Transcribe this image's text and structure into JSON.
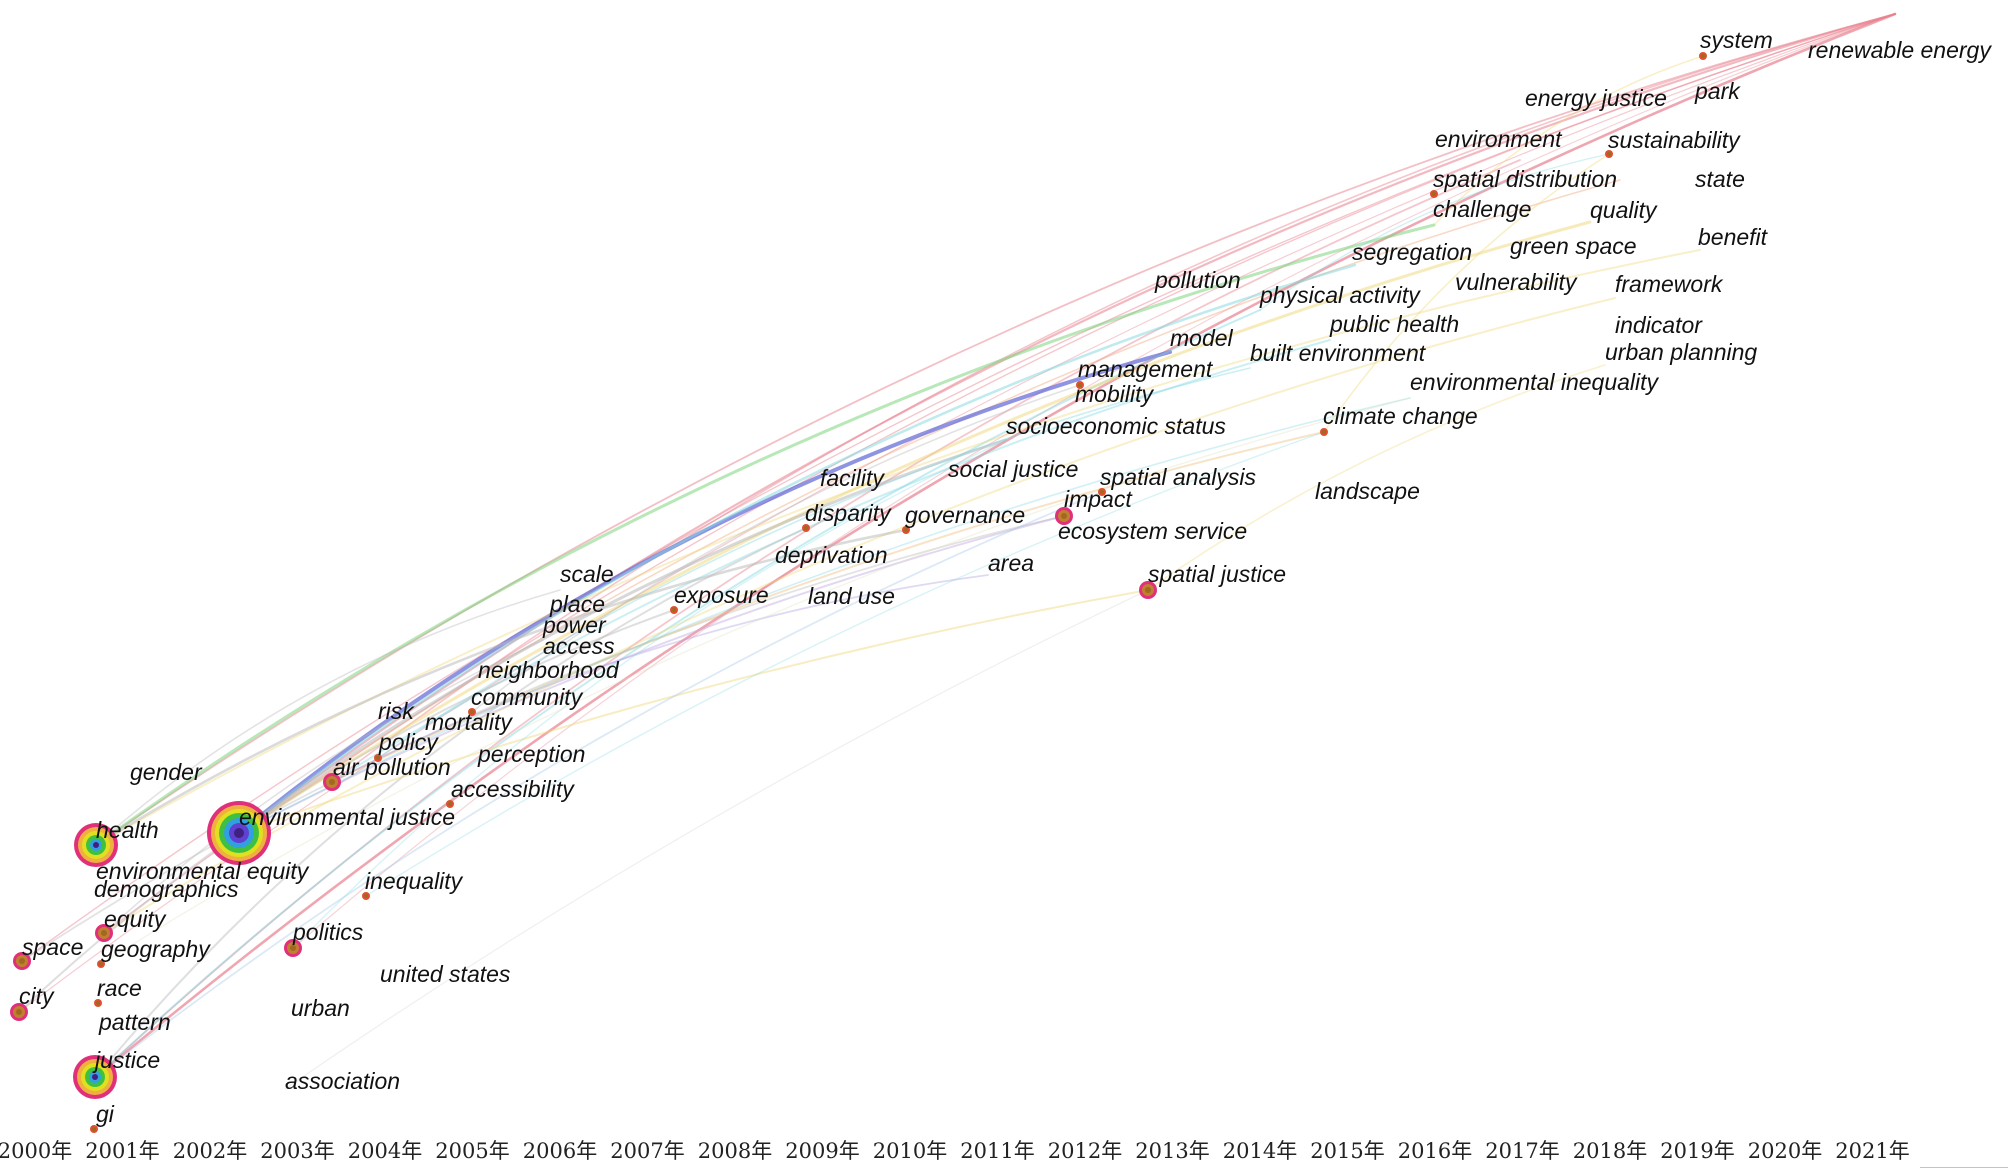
{
  "timeline": {
    "years": [
      "2000年",
      "2001年",
      "2002年",
      "2003年",
      "2004年",
      "2005年",
      "2006年",
      "2007年",
      "2008年",
      "2009年",
      "2010年",
      "2011年",
      "2012年",
      "2013年",
      "2014年",
      "2015年",
      "2016年",
      "2017年",
      "2018年",
      "2019年",
      "2020年",
      "2021年"
    ]
  },
  "keywords": [
    {
      "label": "system",
      "year": 2020,
      "node": "small"
    },
    {
      "label": "renewable energy",
      "year": 2021,
      "node": "none"
    },
    {
      "label": "energy justice",
      "year": 2018,
      "node": "none"
    },
    {
      "label": "park",
      "year": 2019,
      "node": "none"
    },
    {
      "label": "environment",
      "year": 2017,
      "node": "none"
    },
    {
      "label": "sustainability",
      "year": 2018,
      "node": "small"
    },
    {
      "label": "spatial distribution",
      "year": 2016,
      "node": "small"
    },
    {
      "label": "state",
      "year": 2019,
      "node": "none"
    },
    {
      "label": "challenge",
      "year": 2016,
      "node": "none"
    },
    {
      "label": "quality",
      "year": 2018,
      "node": "none"
    },
    {
      "label": "benefit",
      "year": 2019,
      "node": "none"
    },
    {
      "label": "segregation",
      "year": 2016,
      "node": "none"
    },
    {
      "label": "green space",
      "year": 2017,
      "node": "none"
    },
    {
      "label": "pollution",
      "year": 2013,
      "node": "none"
    },
    {
      "label": "vulnerability",
      "year": 2017,
      "node": "none"
    },
    {
      "label": "framework",
      "year": 2018,
      "node": "none"
    },
    {
      "label": "physical activity",
      "year": 2014,
      "node": "none"
    },
    {
      "label": "public health",
      "year": 2015,
      "node": "none"
    },
    {
      "label": "indicator",
      "year": 2018,
      "node": "none"
    },
    {
      "label": "model",
      "year": 2013,
      "node": "none"
    },
    {
      "label": "built environment",
      "year": 2014,
      "node": "none"
    },
    {
      "label": "urban planning",
      "year": 2018,
      "node": "none"
    },
    {
      "label": "management",
      "year": 2012,
      "node": "small"
    },
    {
      "label": "mobility",
      "year": 2012,
      "node": "none"
    },
    {
      "label": "environmental inequality",
      "year": 2015,
      "node": "none"
    },
    {
      "label": "climate change",
      "year": 2015,
      "node": "small"
    },
    {
      "label": "socioeconomic status",
      "year": 2011,
      "node": "none"
    },
    {
      "label": "facility",
      "year": 2009,
      "node": "none"
    },
    {
      "label": "social justice",
      "year": 2011,
      "node": "none"
    },
    {
      "label": "spatial analysis",
      "year": 2012,
      "node": "small"
    },
    {
      "label": "landscape",
      "year": 2015,
      "node": "none"
    },
    {
      "label": "impact",
      "year": 2012,
      "node": "medium"
    },
    {
      "label": "disparity",
      "year": 2009,
      "node": "small"
    },
    {
      "label": "governance",
      "year": 2010,
      "node": "small"
    },
    {
      "label": "ecosystem service",
      "year": 2012,
      "node": "none"
    },
    {
      "label": "deprivation",
      "year": 2009,
      "node": "none"
    },
    {
      "label": "area",
      "year": 2011,
      "node": "none"
    },
    {
      "label": "spatial justice",
      "year": 2013,
      "node": "medium"
    },
    {
      "label": "scale",
      "year": 2006,
      "node": "none"
    },
    {
      "label": "exposure",
      "year": 2007,
      "node": "small"
    },
    {
      "label": "land use",
      "year": 2009,
      "node": "none"
    },
    {
      "label": "place",
      "year": 2006,
      "node": "none"
    },
    {
      "label": "power",
      "year": 2006,
      "node": "none"
    },
    {
      "label": "access",
      "year": 2006,
      "node": "none"
    },
    {
      "label": "neighborhood",
      "year": 2005,
      "node": "none"
    },
    {
      "label": "community",
      "year": 2005,
      "node": "small"
    },
    {
      "label": "risk",
      "year": 2004,
      "node": "none"
    },
    {
      "label": "mortality",
      "year": 2004,
      "node": "none"
    },
    {
      "label": "policy",
      "year": 2004,
      "node": "small"
    },
    {
      "label": "perception",
      "year": 2005,
      "node": "none"
    },
    {
      "label": "gender",
      "year": 2001,
      "node": "none"
    },
    {
      "label": "air pollution",
      "year": 2003,
      "node": "medium"
    },
    {
      "label": "accessibility",
      "year": 2005,
      "node": "small"
    },
    {
      "label": "environmental justice",
      "year": 2002,
      "node": "huge"
    },
    {
      "label": "health",
      "year": 2000,
      "node": "large"
    },
    {
      "label": "environmental equity",
      "year": 2001,
      "node": "none"
    },
    {
      "label": "demographics",
      "year": 2001,
      "node": "none"
    },
    {
      "label": "inequality",
      "year": 2004,
      "node": "small"
    },
    {
      "label": "equity",
      "year": 2001,
      "node": "medium"
    },
    {
      "label": "space",
      "year": 2000,
      "node": "medium"
    },
    {
      "label": "geography",
      "year": 2001,
      "node": "small"
    },
    {
      "label": "politics",
      "year": 2003,
      "node": "medium"
    },
    {
      "label": "united states",
      "year": 2004,
      "node": "none"
    },
    {
      "label": "city",
      "year": 2000,
      "node": "medium"
    },
    {
      "label": "race",
      "year": 2001,
      "node": "small"
    },
    {
      "label": "urban",
      "year": 2003,
      "node": "none"
    },
    {
      "label": "pattern",
      "year": 2001,
      "node": "none"
    },
    {
      "label": "justice",
      "year": 2000,
      "node": "large"
    },
    {
      "label": "association",
      "year": 2003,
      "node": "none"
    },
    {
      "label": "gi",
      "year": 2001,
      "node": "small"
    }
  ],
  "colors": {
    "recent_links": "#e8808e",
    "model_link": "#6a70d8",
    "cyan_links": "#7fd8e0",
    "green_links": "#7ed47e",
    "yellow_links": "#f0d878",
    "gray_links": "#b8b8b8",
    "node_ring_outer": "#e0307a",
    "node_core": "#a06820"
  }
}
